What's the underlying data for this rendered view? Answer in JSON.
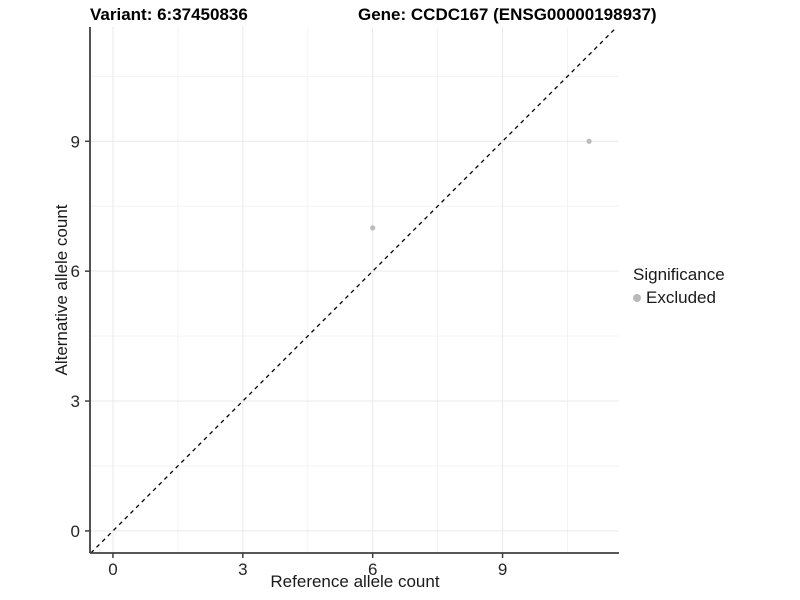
{
  "figure": {
    "titles": {
      "variant": "Variant: 6:37450836",
      "gene": "Gene: CCDC167 (ENSG00000198937)"
    }
  },
  "axes": {
    "x_label": "Reference allele count",
    "y_label": "Alternative allele count"
  },
  "legend": {
    "title": "Significance",
    "items": [
      {
        "label": "Excluded",
        "marker": "circle",
        "color": "#b9b9b9"
      }
    ]
  },
  "chart_data": {
    "type": "scatter",
    "title": "Variant: 6:37450836   Gene: CCDC167 (ENSG00000198937)",
    "xlabel": "Reference allele count",
    "ylabel": "Alternative allele count",
    "series": [
      {
        "name": "Excluded",
        "color": "#bcbcbc",
        "points": [
          {
            "x": 6,
            "y": 7
          },
          {
            "x": 11,
            "y": 9
          }
        ]
      }
    ],
    "x_ticks": [
      0,
      3,
      6,
      9
    ],
    "y_ticks": [
      0,
      3,
      6,
      9
    ],
    "x_minor_ticks": [
      1.5,
      4.5,
      7.5,
      10.5
    ],
    "y_minor_ticks": [
      1.5,
      4.5,
      7.5,
      10.5
    ],
    "xlim": [
      -0.53,
      11.69
    ],
    "ylim": [
      -0.51,
      11.64
    ],
    "grid": {
      "on": true,
      "major_color": "#e9e9e9",
      "minor_color": "#f3f3f3"
    },
    "identity_line": {
      "slope": 1,
      "intercept": 0,
      "style": "dashed",
      "color": "#000000"
    },
    "axis_color": "#3f3f3f",
    "point_radius": 2.6,
    "legend_position": "right"
  }
}
